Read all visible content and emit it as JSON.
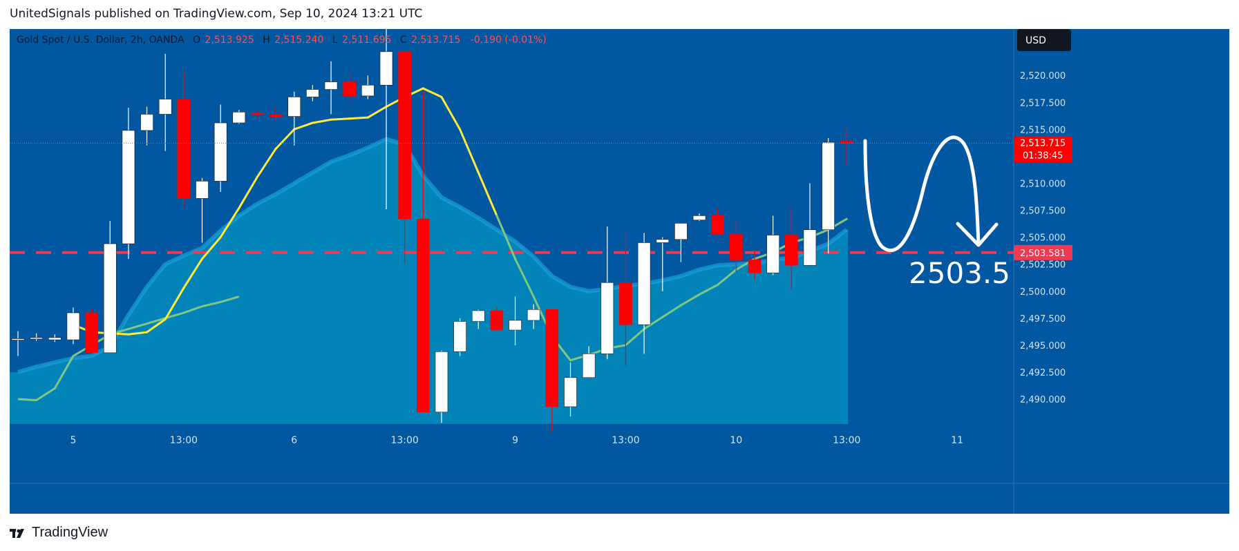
{
  "header": {
    "publisher": "UnitedSignals published on TradingView.com, Sep 10, 2024 13:21 UTC"
  },
  "footer": {
    "brand": "TradingView",
    "logo_icon": "tradingview-logo-icon"
  },
  "legend": {
    "symbol": "Gold Spot / U.S. Dollar, 2h, OANDA",
    "o_label": "O",
    "o_value": "2,513.925",
    "h_label": "H",
    "h_value": "2,515.240",
    "l_label": "L",
    "l_value": "2,511.695",
    "c_label": "C",
    "c_value": "2,513.715",
    "change": "-0.190 (-0.01%)"
  },
  "currency": "USD",
  "price_label": {
    "value": "2,513.715",
    "countdown": "01:38:45"
  },
  "level_label": "2,503.581",
  "annotation_text": "2503.5",
  "colors": {
    "background": "#0157a0",
    "area_fill": "#0284b8",
    "up_candle": "#ffffff",
    "down_candle": "#ff0000",
    "ema_fast": "#ffeb3b",
    "ema_slow": "#81c784",
    "level_line": "#ef3a4f",
    "price_badge": "#ff0000",
    "axis_text": "#d7e3f0"
  },
  "chart_data": {
    "type": "candlestick",
    "y_ticks": [
      2490.0,
      2492.5,
      2495.0,
      2497.5,
      2500.0,
      2502.5,
      2505.0,
      2507.5,
      2510.0,
      2512.5,
      2515.0,
      2517.5,
      2520.0
    ],
    "y_tick_labels": [
      "2,490.000",
      "2,492.500",
      "2,495.000",
      "2,497.500",
      "2,500.000",
      "2,502.500",
      "2,505.000",
      "2,507.500",
      "2,510.000",
      "",
      "2,515.000",
      "2,517.500",
      "2,520.000"
    ],
    "ylim": [
      2487.7,
      2524.3
    ],
    "x_labels": [
      {
        "i": 3,
        "label": "5"
      },
      {
        "i": 9,
        "label": "13:00"
      },
      {
        "i": 15,
        "label": "6"
      },
      {
        "i": 21,
        "label": "13:00"
      },
      {
        "i": 27,
        "label": "9"
      },
      {
        "i": 33,
        "label": "13:00"
      },
      {
        "i": 39,
        "label": "10"
      },
      {
        "i": 45,
        "label": "13:00"
      },
      {
        "i": 51,
        "label": "11"
      }
    ],
    "candles": [
      [
        2495.6,
        2496.3,
        2494.0,
        2495.6
      ],
      [
        2495.6,
        2496.1,
        2495.4,
        2495.7
      ],
      [
        2495.5,
        2496.0,
        2495.3,
        2495.7
      ],
      [
        2495.5,
        2498.5,
        2495.1,
        2498.0
      ],
      [
        2498.0,
        2498.3,
        2494.5,
        2494.3
      ],
      [
        2494.3,
        2506.5,
        2494.3,
        2504.4
      ],
      [
        2504.4,
        2517.0,
        2503.0,
        2514.9
      ],
      [
        2514.9,
        2517.1,
        2513.5,
        2516.4
      ],
      [
        2516.4,
        2522.0,
        2513.0,
        2517.8
      ],
      [
        2517.8,
        2520.5,
        2507.8,
        2508.6
      ],
      [
        2508.6,
        2510.5,
        2504.5,
        2510.2
      ],
      [
        2510.2,
        2517.3,
        2509.2,
        2515.6
      ],
      [
        2515.6,
        2516.8,
        2515.5,
        2516.6
      ],
      [
        2516.5,
        2516.7,
        2516.2,
        2516.4
      ],
      [
        2516.4,
        2517.1,
        2515.7,
        2516.2
      ],
      [
        2516.2,
        2518.5,
        2513.5,
        2518.0
      ],
      [
        2518.0,
        2519.1,
        2517.6,
        2518.7
      ],
      [
        2518.7,
        2521.3,
        2516.4,
        2519.4
      ],
      [
        2519.4,
        2520.2,
        2517.5,
        2518.1
      ],
      [
        2518.1,
        2520.0,
        2517.8,
        2519.1
      ],
      [
        2519.1,
        2525.2,
        2507.6,
        2522.2
      ],
      [
        2522.2,
        2522.2,
        2502.6,
        2506.7
      ],
      [
        2506.7,
        2518.5,
        2488.8,
        2488.8
      ],
      [
        2488.8,
        2494.5,
        2487.8,
        2494.4
      ],
      [
        2494.4,
        2497.5,
        2494.0,
        2497.2
      ],
      [
        2497.2,
        2498.3,
        2496.5,
        2498.2
      ],
      [
        2498.2,
        2498.5,
        2496.3,
        2496.4
      ],
      [
        2496.4,
        2499.5,
        2495.0,
        2497.3
      ],
      [
        2497.3,
        2498.8,
        2496.5,
        2498.3
      ],
      [
        2498.3,
        2498.3,
        2487.0,
        2489.3
      ],
      [
        2489.3,
        2493.4,
        2488.4,
        2492.0
      ],
      [
        2492.0,
        2494.9,
        2492.0,
        2494.2
      ],
      [
        2494.2,
        2506.0,
        2493.7,
        2500.8
      ],
      [
        2500.8,
        2505.5,
        2493.1,
        2496.9
      ],
      [
        2496.9,
        2505.4,
        2494.2,
        2504.5
      ],
      [
        2504.5,
        2505.0,
        2500.0,
        2504.8
      ],
      [
        2504.8,
        2506.3,
        2502.7,
        2506.3
      ],
      [
        2506.6,
        2507.2,
        2506.5,
        2507.0
      ],
      [
        2507.0,
        2507.7,
        2505.2,
        2505.3
      ],
      [
        2505.3,
        2506.5,
        2501.8,
        2502.9
      ],
      [
        2502.9,
        2503.8,
        2501.0,
        2501.7
      ],
      [
        2501.7,
        2507.0,
        2501.5,
        2505.2
      ],
      [
        2505.2,
        2507.8,
        2500.2,
        2502.4
      ],
      [
        2502.4,
        2510.0,
        2502.4,
        2505.7
      ],
      [
        2505.7,
        2514.2,
        2503.5,
        2513.8
      ],
      [
        2513.9,
        2515.2,
        2511.7,
        2513.7
      ]
    ],
    "ema_fast": [
      2496.9,
      2496.2,
      2496.1,
      2496.0,
      2496.2,
      2497.4,
      2500.3,
      2503.0,
      2505.0,
      2507.7,
      2510.6,
      2513.2,
      2515.0,
      2515.6,
      2515.9,
      2516.0,
      2516.1,
      2517.1,
      2518.0,
      2518.8,
      2518.0,
      2515.0,
      2511.0,
      2507.0,
      2503.0,
      2499.5,
      2495.8,
      2493.6,
      2494.1,
      2494.7,
      2495.0,
      2496.5,
      2497.6,
      2498.7,
      2499.7,
      2500.6,
      2502.0,
      2503.0,
      2503.6,
      2504.5,
      2505.0,
      2505.7,
      2506.7
    ],
    "ema_fast_start": 3,
    "ema_slow": [
      2490.0,
      2489.9,
      2491.0,
      2494.0,
      2495.0,
      2496.0,
      2496.5,
      2497.0,
      2497.5,
      2498.0,
      2498.6,
      2499.0,
      2499.5
    ],
    "ema_slow_start": 0,
    "area": [
      2492.5,
      2493.0,
      2493.4,
      2493.8,
      2494.0,
      2494.9,
      2497.8,
      2500.4,
      2502.5,
      2503.3,
      2504.0,
      2505.6,
      2507.0,
      2508.1,
      2509.0,
      2510.0,
      2511.0,
      2512.0,
      2512.6,
      2513.3,
      2514.1,
      2513.6,
      2510.7,
      2508.7,
      2507.8,
      2506.8,
      2505.7,
      2504.6,
      2503.2,
      2501.4,
      2500.4,
      2500.0,
      2500.2,
      2500.5,
      2500.7,
      2501.0,
      2501.4,
      2502.0,
      2502.4,
      2502.5,
      2502.6,
      2502.9,
      2503.1,
      2503.7,
      2504.4,
      2505.7
    ],
    "level": 2503.581,
    "current_price": 2513.715,
    "projection_target": 2503.5
  }
}
